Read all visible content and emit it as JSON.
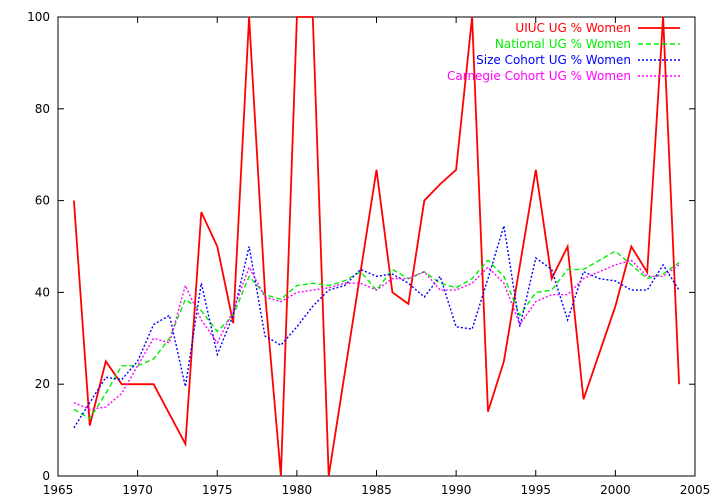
{
  "chart_data": {
    "type": "line",
    "xlim": [
      1965,
      2005
    ],
    "ylim": [
      0,
      100
    ],
    "x_ticks": [
      1965,
      1970,
      1975,
      1980,
      1985,
      1990,
      1995,
      2000,
      2005
    ],
    "y_ticks": [
      0,
      20,
      40,
      60,
      80,
      100
    ],
    "grid": false,
    "legend_position": "top-right",
    "series": [
      {
        "name": "UIUC UG % Women",
        "color": "#ff0000",
        "dash": "solid",
        "points": [
          [
            1966,
            60
          ],
          [
            1967,
            11
          ],
          [
            1968,
            25
          ],
          [
            1969,
            20
          ],
          [
            1970,
            20
          ],
          [
            1971,
            20
          ],
          [
            1973,
            7
          ],
          [
            1974,
            57.5
          ],
          [
            1975,
            50
          ],
          [
            1976,
            33.3
          ],
          [
            1977,
            100
          ],
          [
            1978,
            40
          ],
          [
            1979,
            0
          ],
          [
            1980,
            100
          ],
          [
            1981,
            100
          ],
          [
            1982,
            0
          ],
          [
            1985,
            66.7
          ],
          [
            1986,
            40
          ],
          [
            1987,
            37.5
          ],
          [
            1988,
            60
          ],
          [
            1989,
            63.6
          ],
          [
            1990,
            66.7
          ],
          [
            1991,
            100
          ],
          [
            1992,
            14
          ],
          [
            1993,
            25
          ],
          [
            1995,
            66.7
          ],
          [
            1996,
            43
          ],
          [
            1997,
            50
          ],
          [
            1998,
            16.7
          ],
          [
            2000,
            37
          ],
          [
            2001,
            50
          ],
          [
            2002,
            44.4
          ],
          [
            2003,
            100
          ],
          [
            2004,
            20
          ]
        ]
      },
      {
        "name": "National UG % Women",
        "color": "#00ee00",
        "dash": "dashed",
        "points": [
          [
            1966,
            14.5
          ],
          [
            1967,
            12.5
          ],
          [
            1968,
            18
          ],
          [
            1969,
            24
          ],
          [
            1970,
            24
          ],
          [
            1971,
            25.5
          ],
          [
            1972,
            30
          ],
          [
            1973,
            38.5
          ],
          [
            1974,
            36
          ],
          [
            1975,
            31.5
          ],
          [
            1976,
            35
          ],
          [
            1977,
            43.5
          ],
          [
            1978,
            39.5
          ],
          [
            1979,
            38.5
          ],
          [
            1980,
            41.5
          ],
          [
            1981,
            42
          ],
          [
            1982,
            41.5
          ],
          [
            1983,
            42.5
          ],
          [
            1984,
            44.5
          ],
          [
            1985,
            40.5
          ],
          [
            1986,
            45
          ],
          [
            1987,
            43
          ],
          [
            1988,
            44.5
          ],
          [
            1989,
            42
          ],
          [
            1990,
            41
          ],
          [
            1991,
            43
          ],
          [
            1992,
            47
          ],
          [
            1993,
            43.5
          ],
          [
            1994,
            35
          ],
          [
            1995,
            40
          ],
          [
            1996,
            40.5
          ],
          [
            1997,
            45
          ],
          [
            1998,
            45
          ],
          [
            1999,
            47
          ],
          [
            2000,
            49
          ],
          [
            2001,
            46
          ],
          [
            2002,
            43
          ],
          [
            2003,
            44
          ],
          [
            2004,
            46.5
          ]
        ]
      },
      {
        "name": "Size Cohort UG % Women",
        "color": "#0000ff",
        "dash": "dotted",
        "points": [
          [
            1966,
            10.5
          ],
          [
            1967,
            16
          ],
          [
            1968,
            21.5
          ],
          [
            1969,
            21
          ],
          [
            1970,
            25
          ],
          [
            1971,
            33
          ],
          [
            1972,
            35
          ],
          [
            1973,
            19.5
          ],
          [
            1974,
            42
          ],
          [
            1975,
            26.5
          ],
          [
            1976,
            35
          ],
          [
            1977,
            50
          ],
          [
            1978,
            30.5
          ],
          [
            1979,
            28.5
          ],
          [
            1980,
            32.5
          ],
          [
            1981,
            37
          ],
          [
            1982,
            40.5
          ],
          [
            1983,
            41.5
          ],
          [
            1984,
            45
          ],
          [
            1985,
            43.5
          ],
          [
            1986,
            44
          ],
          [
            1987,
            42
          ],
          [
            1988,
            39
          ],
          [
            1989,
            43.5
          ],
          [
            1990,
            32.5
          ],
          [
            1991,
            32
          ],
          [
            1992,
            43
          ],
          [
            1993,
            54.5
          ],
          [
            1994,
            32.5
          ],
          [
            1995,
            47.5
          ],
          [
            1996,
            45
          ],
          [
            1997,
            34
          ],
          [
            1998,
            44.5
          ],
          [
            1999,
            43
          ],
          [
            2000,
            42.5
          ],
          [
            2001,
            40.5
          ],
          [
            2002,
            40.5
          ],
          [
            2003,
            46
          ],
          [
            2004,
            40.5
          ]
        ]
      },
      {
        "name": "Carnegie Cohort UG % Women",
        "color": "#ff00ff",
        "dash": "dotted",
        "points": [
          [
            1966,
            16
          ],
          [
            1967,
            14.5
          ],
          [
            1968,
            15
          ],
          [
            1969,
            18
          ],
          [
            1970,
            24
          ],
          [
            1971,
            30
          ],
          [
            1972,
            29
          ],
          [
            1973,
            41.5
          ],
          [
            1974,
            34
          ],
          [
            1975,
            29
          ],
          [
            1976,
            36
          ],
          [
            1977,
            45.5
          ],
          [
            1978,
            39
          ],
          [
            1979,
            38
          ],
          [
            1980,
            40
          ],
          [
            1981,
            40.5
          ],
          [
            1982,
            41
          ],
          [
            1983,
            42
          ],
          [
            1984,
            42
          ],
          [
            1985,
            40.5
          ],
          [
            1986,
            43
          ],
          [
            1987,
            43
          ],
          [
            1988,
            44.5
          ],
          [
            1989,
            40.5
          ],
          [
            1990,
            40.5
          ],
          [
            1991,
            42
          ],
          [
            1992,
            45.5
          ],
          [
            1993,
            42
          ],
          [
            1994,
            33
          ],
          [
            1995,
            38
          ],
          [
            1996,
            39.5
          ],
          [
            1997,
            39.5
          ],
          [
            1998,
            43
          ],
          [
            1999,
            44.5
          ],
          [
            2000,
            46
          ],
          [
            2001,
            47
          ],
          [
            2002,
            43.5
          ],
          [
            2003,
            43.5
          ],
          [
            2004,
            46
          ]
        ]
      }
    ]
  }
}
